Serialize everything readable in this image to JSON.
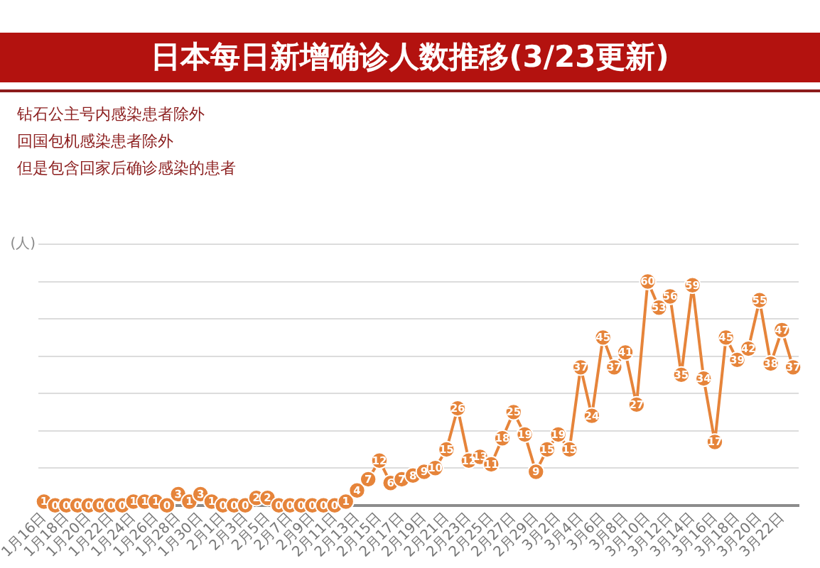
{
  "chart_data": {
    "type": "line",
    "title": "日本每日新增确诊人数推移(3/23更新)",
    "annotations": [
      "钻石公主号内感染患者除外",
      "回国包机感染患者除外",
      "但是包含回家后确诊感染的患者"
    ],
    "ylabel": "(人)",
    "categories": [
      "1月16日",
      null,
      "1月18日",
      null,
      "1月20日",
      null,
      "1月22日",
      null,
      "1月24日",
      null,
      "1月26日",
      null,
      "1月28日",
      null,
      "1月30日",
      null,
      "2月1日",
      null,
      "2月3日",
      null,
      "2月5日",
      null,
      "2月7日",
      null,
      "2月9日",
      null,
      "2月11日",
      null,
      "2月13日",
      null,
      "2月15日",
      null,
      "2月17日",
      null,
      "2月19日",
      null,
      "2月21日",
      null,
      "2月23日",
      null,
      "2月25日",
      null,
      "2月27日",
      null,
      "2月29日",
      null,
      "3月2日",
      null,
      "3月4日",
      null,
      "3月6日",
      null,
      "3月8日",
      null,
      "3月10日",
      null,
      "3月12日",
      null,
      "3月14日",
      null,
      "3月16日",
      null,
      "3月18日",
      null,
      "3月20日",
      null,
      "3月22日",
      null
    ],
    "series": [
      {
        "color": "#e6843a",
        "values": [
          1,
          0,
          0,
          0,
          0,
          0,
          0,
          0,
          1,
          1,
          1,
          0,
          3,
          1,
          3,
          1,
          0,
          0,
          0,
          2,
          2,
          0,
          0,
          0,
          0,
          0,
          0,
          1,
          4,
          7,
          12,
          6,
          7,
          8,
          9,
          10,
          15,
          26,
          12,
          13,
          11,
          18,
          25,
          19,
          9,
          15,
          19,
          15,
          37,
          24,
          45,
          37,
          41,
          27,
          60,
          53,
          56,
          35,
          59,
          34,
          17,
          45,
          39,
          42,
          55,
          38,
          47,
          37
        ]
      }
    ],
    "ylim": [
      0,
      70
    ],
    "yticks": [
      {
        "value": 0,
        "label": null
      },
      {
        "value": 10,
        "label": null
      },
      {
        "value": 20,
        "label": null
      },
      {
        "value": 30,
        "label": null
      },
      {
        "value": 40,
        "label": null
      },
      {
        "value": 50,
        "label": null
      },
      {
        "value": 60,
        "label": null
      },
      {
        "value": 70,
        "label": null
      }
    ],
    "grid": "y",
    "tick_labels": "x",
    "marker": "circle",
    "line_style": "solid",
    "data_labels": true
  }
}
